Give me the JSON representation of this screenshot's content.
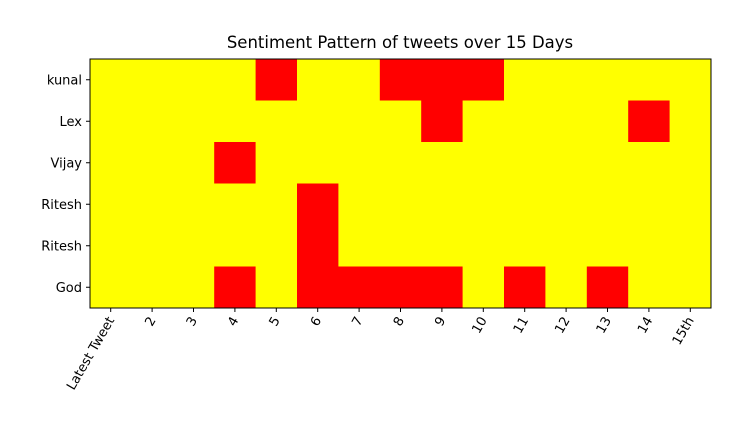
{
  "chart_data": {
    "type": "heatmap",
    "title": "Sentiment Pattern of tweets over 15 Days",
    "x_labels": [
      "Latest Tweet",
      "2",
      "3",
      "4",
      "5",
      "6",
      "7",
      "8",
      "9",
      "10",
      "11",
      "12",
      "13",
      "14",
      "15th"
    ],
    "y_labels": [
      "kunal",
      "Lex",
      "Vijay",
      "Ritesh",
      "Ritesh",
      "God"
    ],
    "colors": {
      "0": "#ffff00",
      "1": "#ff0000",
      "frame": "#000000"
    },
    "values": [
      [
        0,
        0,
        0,
        0,
        1,
        0,
        0,
        1,
        1,
        1,
        0,
        0,
        0,
        0,
        0
      ],
      [
        0,
        0,
        0,
        0,
        0,
        0,
        0,
        0,
        1,
        0,
        0,
        0,
        0,
        1,
        0
      ],
      [
        0,
        0,
        0,
        1,
        0,
        0,
        0,
        0,
        0,
        0,
        0,
        0,
        0,
        0,
        0
      ],
      [
        0,
        0,
        0,
        0,
        0,
        1,
        0,
        0,
        0,
        0,
        0,
        0,
        0,
        0,
        0
      ],
      [
        0,
        0,
        0,
        0,
        0,
        1,
        0,
        0,
        0,
        0,
        0,
        0,
        0,
        0,
        0
      ],
      [
        0,
        0,
        0,
        1,
        0,
        1,
        1,
        1,
        1,
        0,
        1,
        0,
        1,
        0,
        0
      ]
    ],
    "grid": false,
    "legend": "none"
  }
}
